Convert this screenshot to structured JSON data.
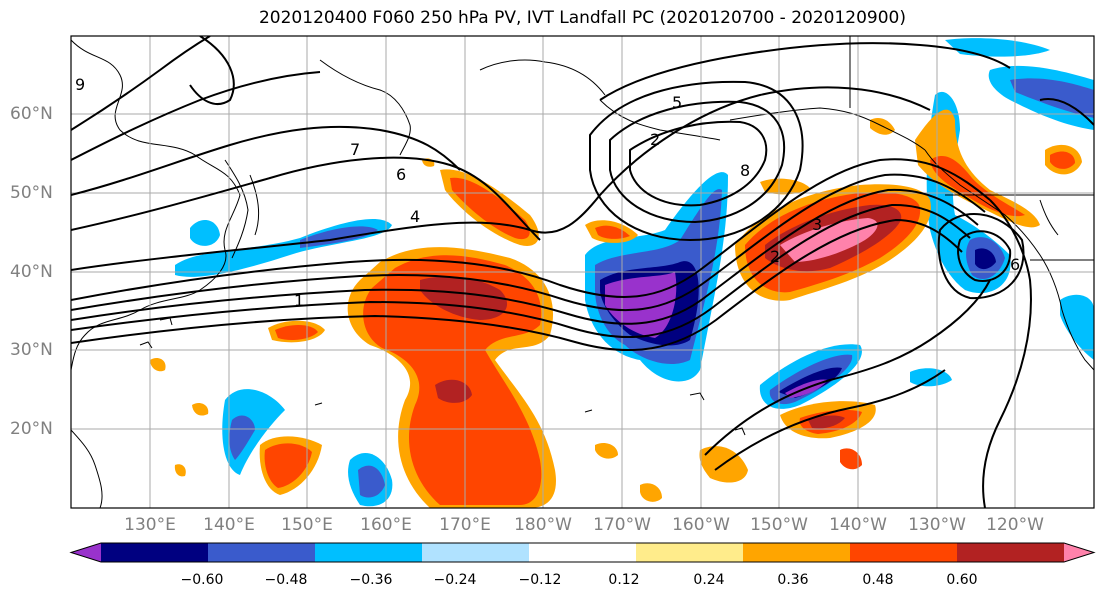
{
  "title": "2020120400 F060 250 hPa PV, IVT Landfall PC (2020120700 - 2020120900)",
  "lat_labels": [
    "60°N",
    "50°N",
    "40°N",
    "30°N",
    "20°N"
  ],
  "lon_labels": [
    "130°E",
    "140°E",
    "150°E",
    "160°E",
    "170°E",
    "180°W",
    "170°W",
    "160°W",
    "150°W",
    "140°W",
    "130°W",
    "120°W"
  ],
  "contour_labels": [
    "1",
    "2",
    "3",
    "4",
    "6",
    "7",
    "8",
    "9",
    "2",
    "5",
    "6"
  ],
  "colorbar": {
    "ticks": [
      "−0.60",
      "−0.48",
      "−0.36",
      "−0.24",
      "−0.12",
      "0.12",
      "0.24",
      "0.36",
      "0.48",
      "0.60"
    ],
    "colors": [
      "#9932cc",
      "#000080",
      "#3a5bcc",
      "#00bfff",
      "#b0e2ff",
      "#ffffff",
      "#ffec8b",
      "#ffa500",
      "#ff4500",
      "#b22222",
      "#ff82ab"
    ]
  }
}
